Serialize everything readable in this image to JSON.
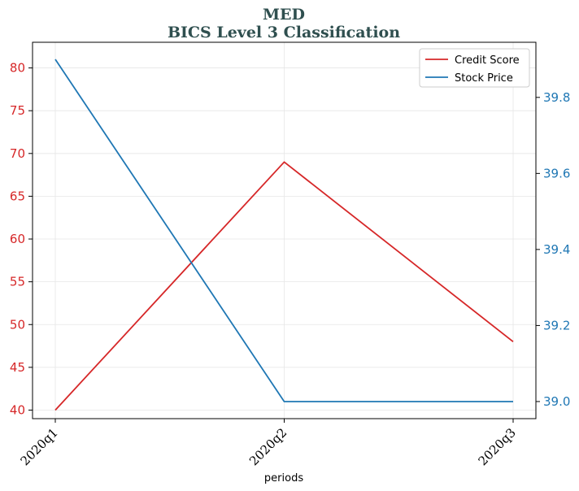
{
  "chart_data": {
    "type": "line",
    "title": "MED",
    "subtitle": "BICS Level 3 Classification",
    "xlabel": "periods",
    "categories": [
      "2020q1",
      "2020q2",
      "2020q3"
    ],
    "grid": true,
    "legend_position": "top-right",
    "y_left": {
      "range": [
        39.0,
        83.0
      ],
      "ticks": [
        40,
        45,
        50,
        55,
        60,
        65,
        70,
        75,
        80
      ],
      "color": "#d62728"
    },
    "y_right": {
      "range": [
        38.955,
        39.945
      ],
      "ticks": [
        39.0,
        39.2,
        39.4,
        39.6,
        39.8
      ],
      "color": "#1f77b4"
    },
    "series": [
      {
        "name": "Credit Score",
        "axis": "left",
        "color": "#d62728",
        "values": [
          40,
          69,
          48
        ]
      },
      {
        "name": "Stock Price",
        "axis": "right",
        "color": "#1f77b4",
        "values": [
          39.9,
          39.0,
          39.0
        ]
      }
    ]
  }
}
